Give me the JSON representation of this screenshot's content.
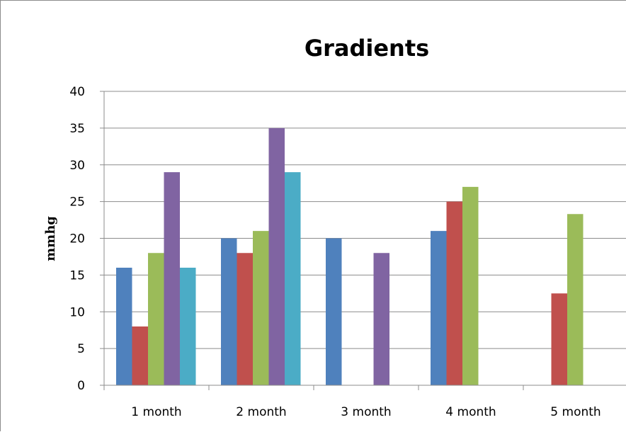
{
  "chart_data": {
    "type": "bar",
    "title": "Gradients",
    "xlabel": "",
    "ylabel": "mmhg",
    "ylim": [
      0,
      40
    ],
    "yticks": [
      0,
      5,
      10,
      15,
      20,
      25,
      30,
      35,
      40
    ],
    "categories": [
      "1 month",
      "2 month",
      "3 month",
      "4 month",
      "5 month"
    ],
    "grid": true,
    "legend": "none",
    "series": [
      {
        "color": "#4F81BD",
        "values": [
          16,
          20,
          20,
          21,
          null
        ]
      },
      {
        "color": "#C0504D",
        "values": [
          8,
          18,
          null,
          25,
          12.5
        ]
      },
      {
        "color": "#9BBB59",
        "values": [
          18,
          21,
          null,
          27,
          23.3
        ]
      },
      {
        "color": "#8064A2",
        "values": [
          29,
          35,
          18,
          null,
          null
        ]
      },
      {
        "color": "#4BACC6",
        "values": [
          16,
          29,
          null,
          null,
          null
        ]
      }
    ]
  }
}
